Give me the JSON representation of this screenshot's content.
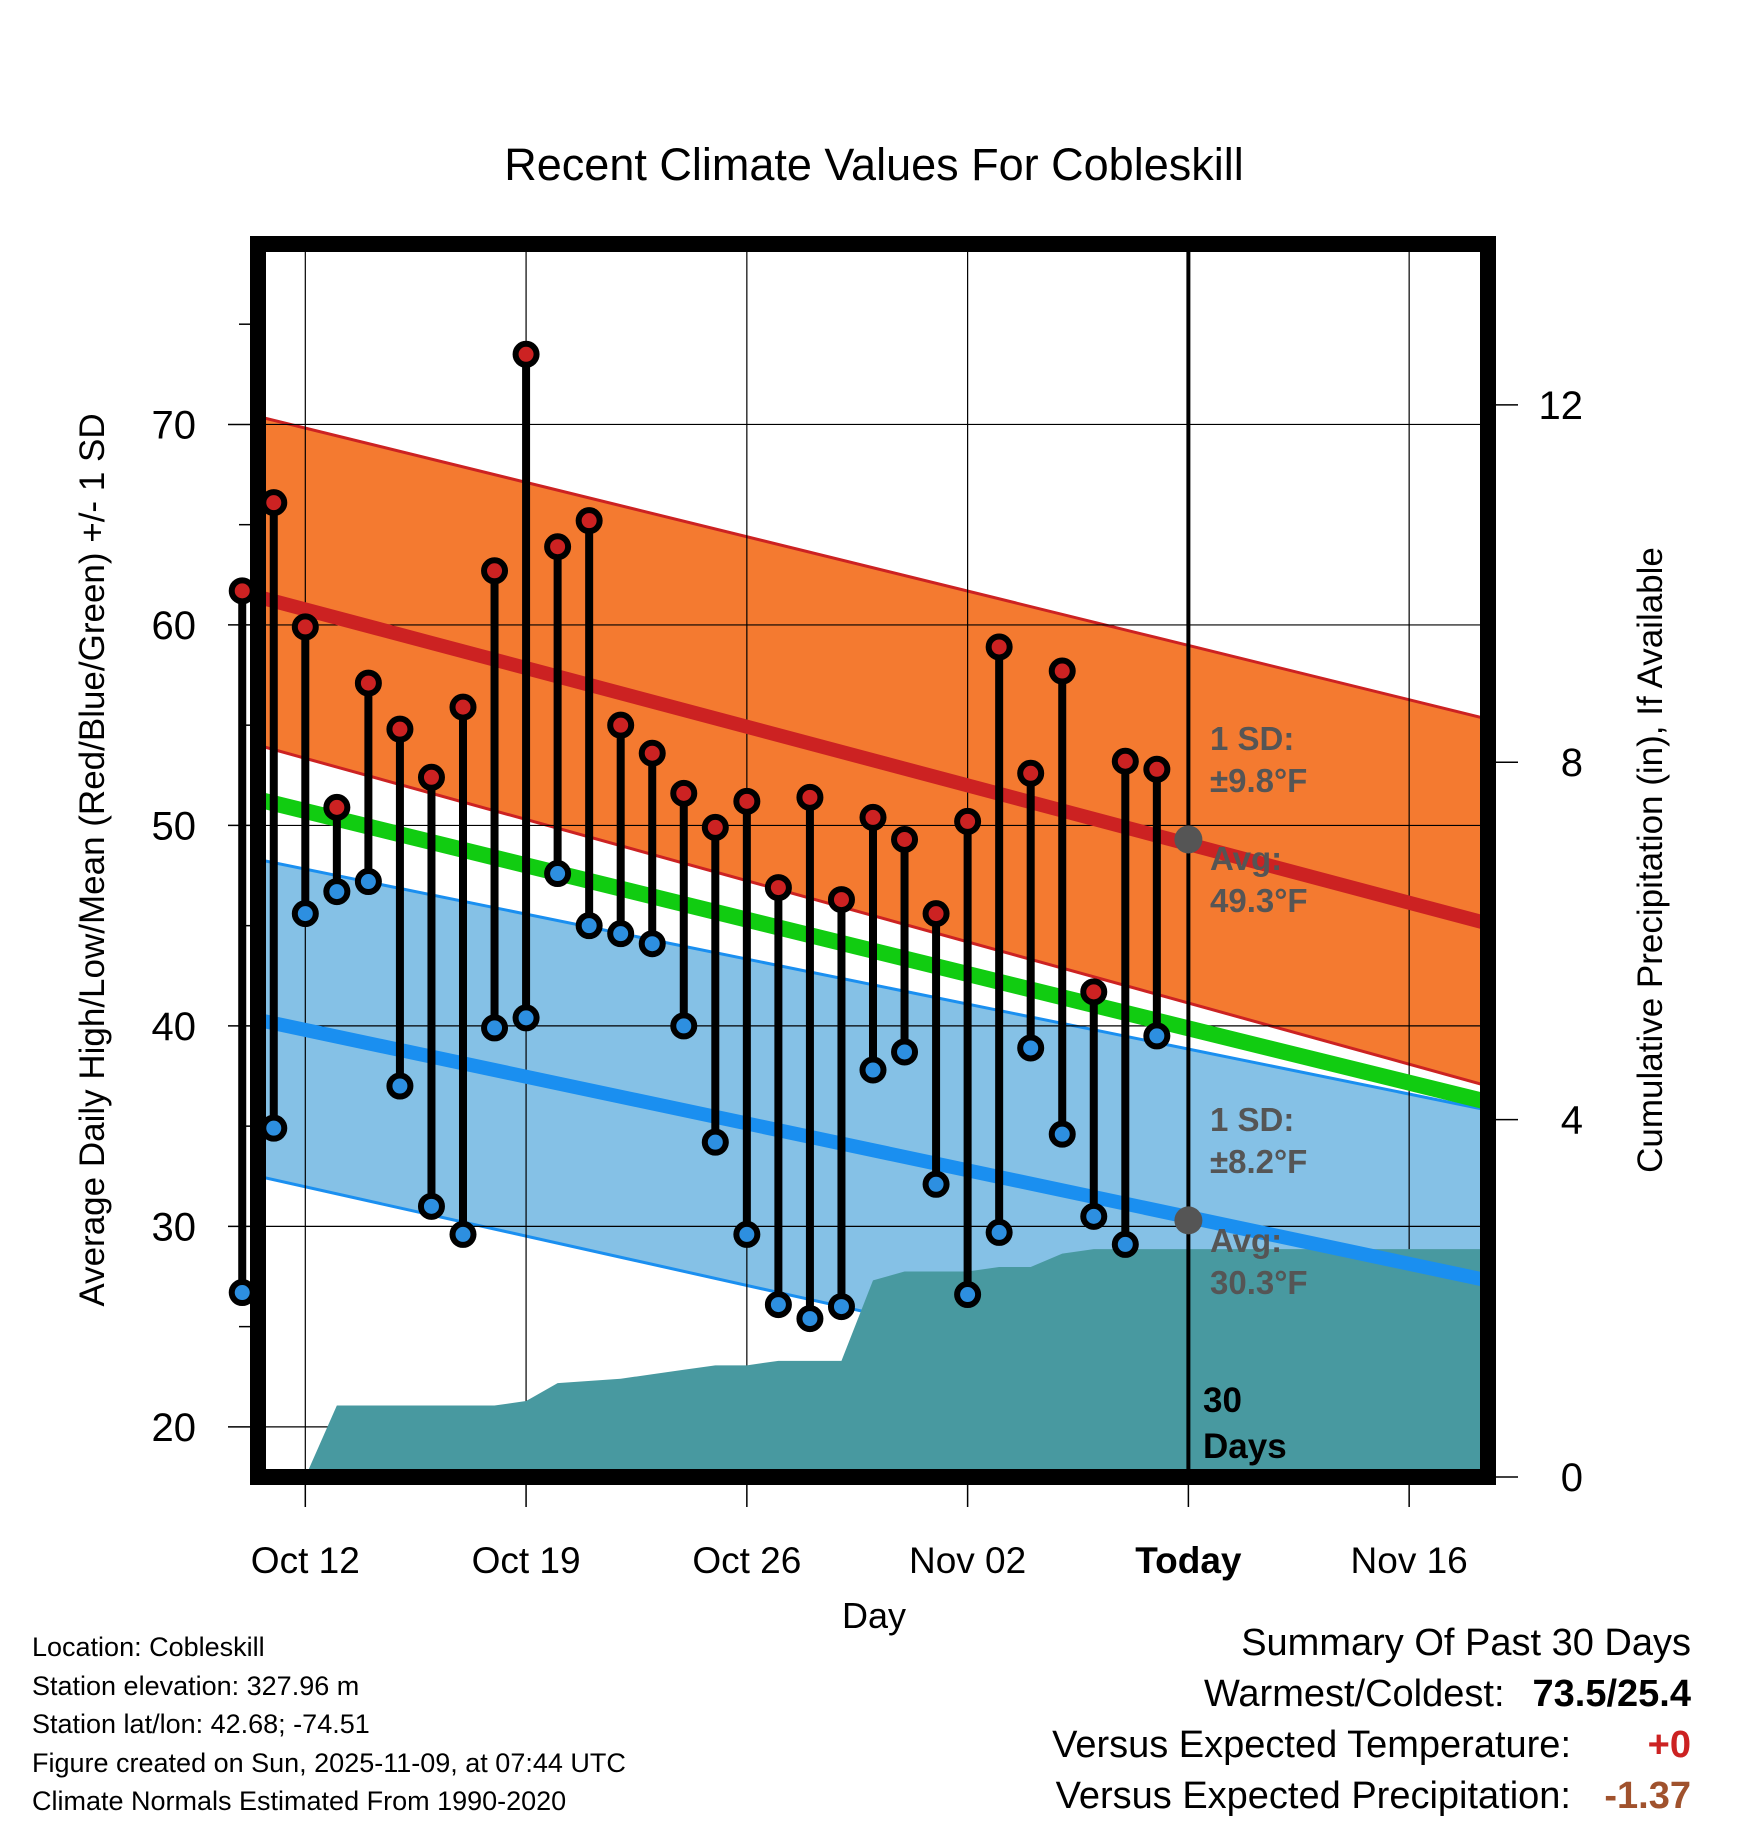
{
  "chart_data": {
    "type": "line",
    "title": "Recent Climate Values For Cobleskill",
    "xlabel": "Day",
    "ylabel": "Average Daily High/Low/Mean (Red/Blue/Green) +/- 1 SD",
    "y2label": "Cumulative Precipitation (in), If Available",
    "xlim_days": [
      -28.5,
      10.5
    ],
    "ylim": [
      17.5,
      79
    ],
    "y2lim": [
      0,
      13.8
    ],
    "x_ticks": [
      {
        "day": -27,
        "label": "Oct 12"
      },
      {
        "day": -20,
        "label": "Oct 19"
      },
      {
        "day": -13,
        "label": "Oct 26"
      },
      {
        "day": -6,
        "label": "Nov 02"
      },
      {
        "day": 1,
        "label": "Today"
      },
      {
        "day": 8,
        "label": "Nov 16"
      }
    ],
    "y_ticks": [
      20,
      30,
      40,
      50,
      60,
      70
    ],
    "y2_ticks": [
      0,
      4,
      8,
      12
    ],
    "normals": {
      "high_avg": [
        61.4,
        45.1
      ],
      "high_upper": [
        70.4,
        55.3
      ],
      "high_lower": [
        54.0,
        37.0
      ],
      "low_avg": [
        40.3,
        27.3
      ],
      "low_upper": [
        48.3,
        35.8
      ],
      "low_lower": [
        32.5,
        18.8
      ],
      "mean_avg": [
        51.3,
        36.2
      ]
    },
    "today_markers": {
      "high_avg": 49.3,
      "low_avg": 30.3,
      "high_sd_label": "1 SD:",
      "high_sd_value": "±9.8°F",
      "high_avg_label": "Avg:",
      "high_avg_value": "49.3°F",
      "low_sd_label": "1 SD:",
      "low_sd_value": "±8.2°F",
      "low_avg_label": "Avg:",
      "low_avg_value": "30.3°F"
    },
    "days_label": "30 Days",
    "days": [
      -29,
      -28,
      -27,
      -26,
      -25,
      -24,
      -23,
      -22,
      -21,
      -20,
      -19,
      -18,
      -17,
      -16,
      -15,
      -14,
      -13,
      -12,
      -11,
      -10,
      -9,
      -8,
      -7,
      -6,
      -5,
      -4,
      -3,
      -2,
      -1,
      0
    ],
    "series": [
      {
        "name": "High",
        "color": "#cc2222",
        "values": [
          61.7,
          66.1,
          59.9,
          50.9,
          57.1,
          54.8,
          52.4,
          55.9,
          62.7,
          73.5,
          63.9,
          65.2,
          55.0,
          53.6,
          51.6,
          49.9,
          51.2,
          46.9,
          51.4,
          46.3,
          50.4,
          49.3,
          45.6,
          50.2,
          58.9,
          52.6,
          57.7,
          41.7,
          53.2,
          52.8
        ]
      },
      {
        "name": "Low",
        "color": "#2d8fe0",
        "values": [
          26.7,
          34.9,
          45.6,
          46.7,
          47.2,
          37.0,
          31.0,
          29.6,
          39.9,
          40.4,
          47.6,
          45.0,
          44.6,
          44.1,
          40.0,
          34.2,
          29.6,
          26.1,
          25.4,
          26.0,
          37.8,
          38.7,
          32.1,
          26.6,
          29.7,
          38.9,
          34.6,
          30.5,
          29.1,
          39.5
        ]
      }
    ],
    "precip_steps": [
      [
        -28,
        0.0
      ],
      [
        -27,
        0.0
      ],
      [
        -26,
        0.8
      ],
      [
        -21,
        0.8
      ],
      [
        -20,
        0.85
      ],
      [
        -19,
        1.05
      ],
      [
        -17,
        1.1
      ],
      [
        -16,
        1.15
      ],
      [
        -15,
        1.2
      ],
      [
        -14,
        1.25
      ],
      [
        -13,
        1.25
      ],
      [
        -12,
        1.3
      ],
      [
        -10,
        1.3
      ],
      [
        -9,
        2.2
      ],
      [
        -8,
        2.3
      ],
      [
        -6,
        2.3
      ],
      [
        -5,
        2.35
      ],
      [
        -4,
        2.35
      ],
      [
        -3,
        2.5
      ],
      [
        -2,
        2.55
      ],
      [
        10.5,
        2.55
      ]
    ]
  },
  "location": {
    "location_line": "Location: Cobleskill",
    "elevation_line": "Station elevation: 327.96 m",
    "latlon_line": "Station lat/lon: 42.68; -74.51",
    "created_line": "Figure created on Sun, 2025-11-09, at 07:44 UTC",
    "normals_line": "Climate Normals Estimated From 1990-2020"
  },
  "summary": {
    "title": "Summary Of Past 30 Days",
    "warm_cold_label": "Warmest/Coldest:",
    "warm_cold_value": "73.5/25.4",
    "temp_label": "Versus Expected Temperature:",
    "temp_value": "+0",
    "temp_color": "#cc2222",
    "precip_label": "Versus Expected Precipitation:",
    "precip_value": "-1.37",
    "precip_color": "#a0522d"
  },
  "colors": {
    "high_band": "#f47a30",
    "low_band": "#85c1e6",
    "high_line": "#cc2222",
    "low_line": "#1a8ff0",
    "mean_line": "#11cc11",
    "precip_fill": "#4899a0",
    "marker_gray": "#555555"
  }
}
